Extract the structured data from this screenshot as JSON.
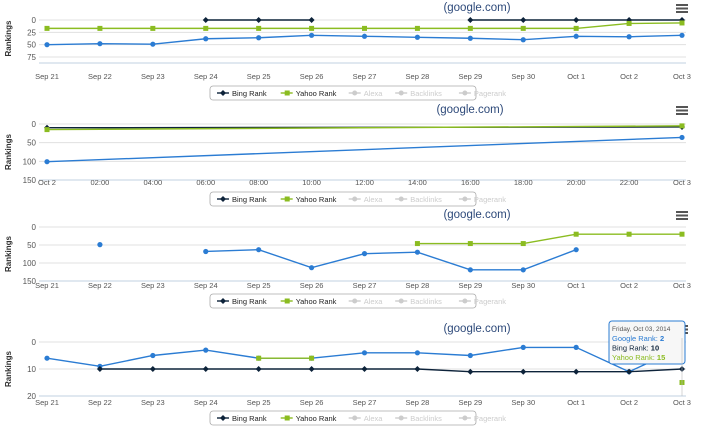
{
  "colors": {
    "google": "#2b7cd3",
    "bing": "#0d233a",
    "yahoo": "#8bbc21",
    "grid": "#e0e0e0",
    "legend_inactive": "#cccccc",
    "tick": "#555555"
  },
  "icons": {
    "menu": "hamburger-menu-icon"
  },
  "chart_data": [
    {
      "type": "line",
      "title": "(google.com)",
      "ylabel": "Rankings",
      "ylim": [
        75,
        0
      ],
      "yticks": [
        "0",
        "25",
        "50",
        "75"
      ],
      "categories": [
        "Sep 21",
        "Sep 22",
        "Sep 23",
        "Sep 24",
        "Sep 25",
        "Sep 26",
        "Sep 27",
        "Sep 28",
        "Sep 29",
        "Sep 30",
        "Oct 1",
        "Oct 2",
        "Oct 3"
      ],
      "series": [
        {
          "name": "Google Rank",
          "color": "#2b7cd3",
          "values": [
            50,
            48,
            49,
            38,
            36,
            31,
            33,
            35,
            37,
            40,
            33,
            34,
            31
          ]
        },
        {
          "name": "Bing Rank",
          "color": "#0d233a",
          "values": [
            null,
            null,
            null,
            0,
            0,
            0,
            null,
            null,
            0,
            0,
            0,
            0,
            0
          ]
        },
        {
          "name": "Yahoo Rank",
          "color": "#8bbc21",
          "values": [
            17,
            17,
            17,
            17,
            17,
            17,
            17,
            17,
            17,
            17,
            17,
            7,
            6
          ]
        }
      ],
      "legend": [
        {
          "label": "Bing Rank",
          "active": true
        },
        {
          "label": "Yahoo Rank",
          "active": true
        },
        {
          "label": "Alexa",
          "active": false
        },
        {
          "label": "Backlinks",
          "active": false
        },
        {
          "label": "Pagerank",
          "active": false
        }
      ],
      "legend_position": "bottom-center",
      "grid": true
    },
    {
      "type": "line",
      "title": "(google.com)",
      "ylabel": "Rankings",
      "ylim": [
        150,
        0
      ],
      "yticks": [
        "0",
        "50",
        "100",
        "150"
      ],
      "categories": [
        "Oct 2",
        "02:00",
        "04:00",
        "06:00",
        "08:00",
        "10:00",
        "12:00",
        "14:00",
        "16:00",
        "18:00",
        "20:00",
        "22:00",
        "Oct 3"
      ],
      "series": [
        {
          "name": "Google Rank",
          "color": "#2b7cd3",
          "points": [
            [
              0,
              101
            ],
            [
              12,
              36
            ]
          ]
        },
        {
          "name": "Bing Rank",
          "color": "#0d233a",
          "points": [
            [
              0,
              10
            ],
            [
              12,
              8
            ]
          ]
        },
        {
          "name": "Yahoo Rank",
          "color": "#8bbc21",
          "points": [
            [
              0,
              15
            ],
            [
              12,
              5
            ]
          ]
        }
      ],
      "legend": [
        {
          "label": "Bing Rank",
          "active": true
        },
        {
          "label": "Yahoo Rank",
          "active": true
        },
        {
          "label": "Alexa",
          "active": false
        },
        {
          "label": "Backlinks",
          "active": false
        },
        {
          "label": "Pagerank",
          "active": false
        }
      ],
      "legend_position": "bottom-center",
      "grid": true
    },
    {
      "type": "line",
      "title": "(google.com)",
      "ylabel": "Rankings",
      "ylim": [
        150,
        0
      ],
      "yticks": [
        "0",
        "50",
        "100",
        "150"
      ],
      "categories": [
        "Sep 21",
        "Sep 22",
        "Sep 23",
        "Sep 24",
        "Sep 25",
        "Sep 26",
        "Sep 27",
        "Sep 28",
        "Sep 29",
        "Sep 30",
        "Oct 1",
        "Oct 2",
        "Oct 3"
      ],
      "series": [
        {
          "name": "Google Rank",
          "color": "#2b7cd3",
          "values": [
            null,
            49,
            null,
            68,
            63,
            113,
            74,
            70,
            119,
            119,
            63,
            null,
            null
          ]
        },
        {
          "name": "Yahoo Rank",
          "color": "#8bbc21",
          "values": [
            null,
            null,
            null,
            null,
            null,
            null,
            null,
            46,
            46,
            46,
            20,
            20,
            20
          ]
        }
      ],
      "legend": [
        {
          "label": "Bing Rank",
          "active": true
        },
        {
          "label": "Yahoo Rank",
          "active": true
        },
        {
          "label": "Alexa",
          "active": false
        },
        {
          "label": "Backlinks",
          "active": false
        },
        {
          "label": "Pagerank",
          "active": false
        }
      ],
      "legend_position": "bottom-center",
      "grid": true
    },
    {
      "type": "line",
      "title": "(google.com)",
      "ylabel": "Rankings",
      "ylim": [
        20,
        0
      ],
      "yticks": [
        "0",
        "10",
        "20"
      ],
      "categories": [
        "Sep 21",
        "Sep 22",
        "Sep 23",
        "Sep 24",
        "Sep 25",
        "Sep 26",
        "Sep 27",
        "Sep 28",
        "Sep 29",
        "Sep 30",
        "Oct 1",
        "Oct 2",
        "Oct 3"
      ],
      "series": [
        {
          "name": "Google Rank",
          "color": "#2b7cd3",
          "values": [
            6,
            9,
            5,
            3,
            6,
            6,
            4,
            4,
            5,
            2,
            2,
            11,
            2
          ]
        },
        {
          "name": "Bing Rank",
          "color": "#0d233a",
          "values": [
            null,
            10,
            10,
            10,
            10,
            10,
            10,
            10,
            11,
            11,
            11,
            11,
            10
          ]
        },
        {
          "name": "Yahoo Rank",
          "color": "#8bbc21",
          "values": [
            null,
            null,
            null,
            null,
            6,
            6,
            null,
            null,
            null,
            null,
            null,
            null,
            15
          ]
        }
      ],
      "legend": [
        {
          "label": "Bing Rank",
          "active": true
        },
        {
          "label": "Yahoo Rank",
          "active": true
        },
        {
          "label": "Alexa",
          "active": false
        },
        {
          "label": "Backlinks",
          "active": false
        },
        {
          "label": "Pagerank",
          "active": false
        }
      ],
      "legend_position": "bottom-center",
      "grid": true,
      "tooltip": {
        "date": "Friday, Oct 03, 2014",
        "lines": [
          {
            "label": "Google Rank",
            "value": "2",
            "color": "#2b7cd3"
          },
          {
            "label": "Bing Rank",
            "value": "10",
            "color": "#0d233a"
          },
          {
            "label": "Yahoo Rank",
            "value": "15",
            "color": "#8bbc21"
          }
        ]
      }
    }
  ]
}
